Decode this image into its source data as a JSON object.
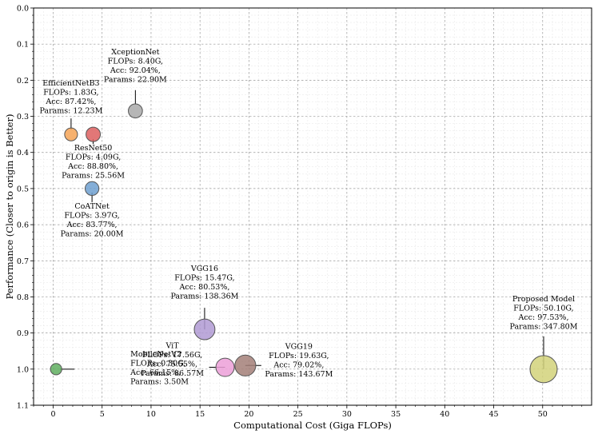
{
  "chart_data": {
    "type": "scatter",
    "title": "",
    "xlabel": "Computational Cost (Giga FLOPs)",
    "ylabel": "Performance (Closer to origin is Better)",
    "xlim": [
      -2,
      55
    ],
    "ylim": [
      0.0,
      1.1
    ],
    "y_inverted": true,
    "x_ticks": [
      0,
      5,
      10,
      15,
      20,
      25,
      30,
      35,
      40,
      45,
      50
    ],
    "y_ticks": [
      0.0,
      0.1,
      0.2,
      0.3,
      0.4,
      0.5,
      0.6,
      0.7,
      0.8,
      0.9,
      1.0,
      1.1
    ],
    "x_tick_labels": [
      "0",
      "5",
      "10",
      "15",
      "20",
      "25",
      "30",
      "35",
      "40",
      "45",
      "50"
    ],
    "y_tick_labels": [
      "0.0",
      "0.1",
      "0.2",
      "0.3",
      "0.4",
      "0.5",
      "0.6",
      "0.7",
      "0.8",
      "0.9",
      "1.0",
      "1.1"
    ],
    "grid": true,
    "bubble_size_encoding": "Params",
    "points": [
      {
        "name": "MobileNetV2",
        "x": 0.3,
        "y": 1.0,
        "params_m": 3.5,
        "color": "#5fae5f",
        "label_lines": [
          "MobileNetV2",
          "FLOPs: 0.30G,",
          "Acc: 66.15%,",
          "Params: 3.50M"
        ]
      },
      {
        "name": "EfficientNetB3",
        "x": 1.83,
        "y": 0.35,
        "params_m": 12.23,
        "color": "#f5a356",
        "label_lines": [
          "EfficientNetB3",
          "FLOPs: 1.83G,",
          "Acc: 87.42%,",
          "Params: 12.23M"
        ]
      },
      {
        "name": "CoATNet",
        "x": 3.97,
        "y": 0.5,
        "params_m": 20.0,
        "color": "#6fa0d0",
        "label_lines": [
          "CoATNet",
          "FLOPs: 3.97G,",
          "Acc: 83.77%,",
          "Params: 20.00M"
        ]
      },
      {
        "name": "ResNet50",
        "x": 4.09,
        "y": 0.35,
        "params_m": 25.56,
        "color": "#dd5f5f",
        "label_lines": [
          "ResNet50",
          "FLOPs: 4.09G,",
          "Acc: 88.80%,",
          "Params: 25.56M"
        ]
      },
      {
        "name": "XceptionNet",
        "x": 8.4,
        "y": 0.285,
        "params_m": 22.9,
        "color": "#a9a9a9",
        "label_lines": [
          "XceptionNet",
          "FLOPs: 8.40G,",
          "Acc: 92.04%,",
          "Params: 22.90M"
        ]
      },
      {
        "name": "VGG16",
        "x": 15.47,
        "y": 0.89,
        "params_m": 138.36,
        "color": "#b09ad4",
        "label_lines": [
          "VGG16",
          "FLOPs: 15.47G,",
          "Acc: 80.53%,",
          "Params: 138.36M"
        ]
      },
      {
        "name": "ViT",
        "x": 17.56,
        "y": 0.995,
        "params_m": 86.57,
        "color": "#ec9fd8",
        "label_lines": [
          "ViT",
          "FLOPs: 17.56G,",
          "Acc: 75.55%,",
          "Params: 86.57M"
        ]
      },
      {
        "name": "VGG19",
        "x": 19.63,
        "y": 0.99,
        "params_m": 143.67,
        "color": "#a37f78",
        "label_lines": [
          "VGG19",
          "FLOPs: 19.63G,",
          "Acc: 79.02%,",
          "Params: 143.67M"
        ]
      },
      {
        "name": "Proposed Model",
        "x": 50.1,
        "y": 1.0,
        "params_m": 347.8,
        "color": "#d2d27a",
        "label_lines": [
          "Proposed Model",
          "FLOPs: 50.10G,",
          "Acc: 97.53%,",
          "Params: 347.80M"
        ]
      }
    ]
  }
}
